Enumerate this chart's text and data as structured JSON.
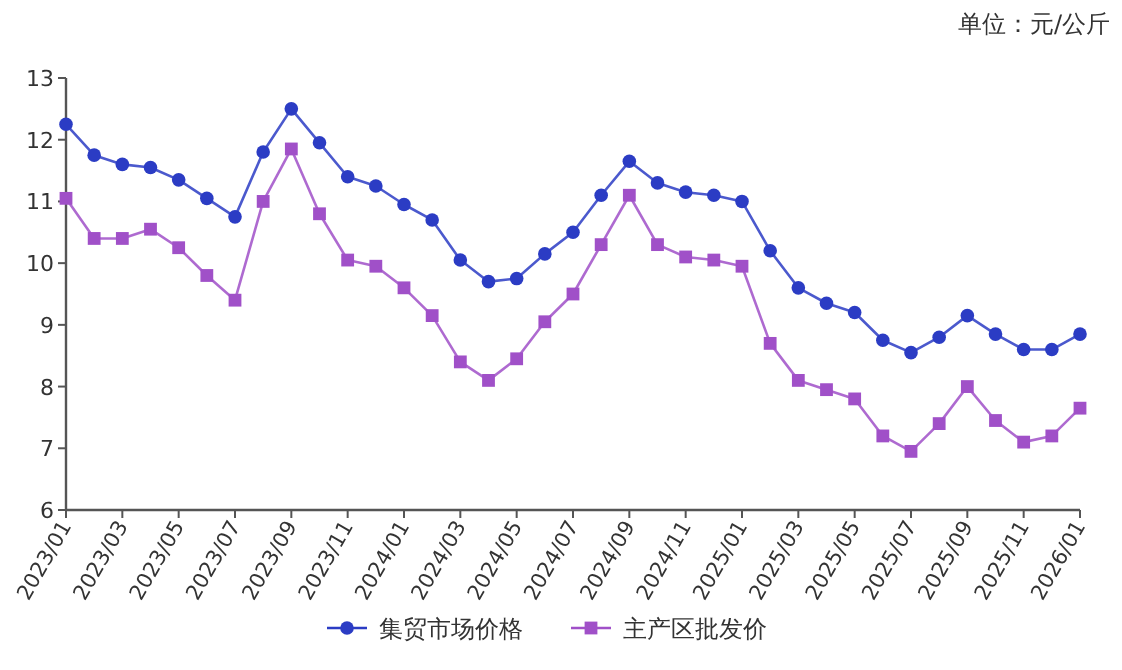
{
  "chart_data": {
    "type": "line",
    "annotations": [
      "单位：元/公斤"
    ],
    "categories": [
      "2023/01",
      null,
      "2023/03",
      null,
      "2023/05",
      null,
      "2023/07",
      null,
      "2023/09",
      null,
      "2023/11",
      null,
      "2024/01",
      null,
      "2024/03",
      null,
      "2024/05",
      null,
      "2024/07",
      null,
      "2024/09",
      null,
      "2024/11",
      null,
      "2025/01",
      null,
      "2025/03",
      null,
      "2025/05",
      null,
      "2025/07",
      null,
      "2025/09",
      null,
      "2025/11",
      null,
      "2026/01"
    ],
    "ylim": [
      6,
      13
    ],
    "yticks": [
      6,
      7,
      8,
      9,
      10,
      11,
      12,
      13
    ],
    "grid": false,
    "legend": "bottom",
    "series": [
      {
        "name": "集贸市场价格",
        "color": "#2b3cc4",
        "marker": "circle",
        "values": [
          12.25,
          11.75,
          11.6,
          11.55,
          11.35,
          11.05,
          10.75,
          11.8,
          12.5,
          11.95,
          11.4,
          11.25,
          10.95,
          10.7,
          10.05,
          9.7,
          9.75,
          10.15,
          10.5,
          11.1,
          11.65,
          11.3,
          11.15,
          11.1,
          11.0,
          10.2,
          9.6,
          9.35,
          9.2,
          8.75,
          8.55,
          8.8,
          9.15,
          8.85,
          8.6,
          8.6,
          8.85
        ]
      },
      {
        "name": "主产区批发价",
        "color": "#a050c8",
        "marker": "square",
        "values": [
          11.05,
          10.4,
          10.4,
          10.55,
          10.25,
          9.8,
          9.4,
          11.0,
          11.85,
          10.8,
          10.05,
          9.95,
          9.6,
          9.15,
          8.4,
          8.1,
          8.45,
          9.05,
          9.5,
          10.3,
          11.1,
          10.3,
          10.1,
          10.05,
          9.95,
          8.7,
          8.1,
          7.95,
          7.8,
          7.2,
          6.95,
          7.4,
          8.0,
          7.45,
          7.1,
          7.2,
          7.65
        ]
      }
    ]
  }
}
